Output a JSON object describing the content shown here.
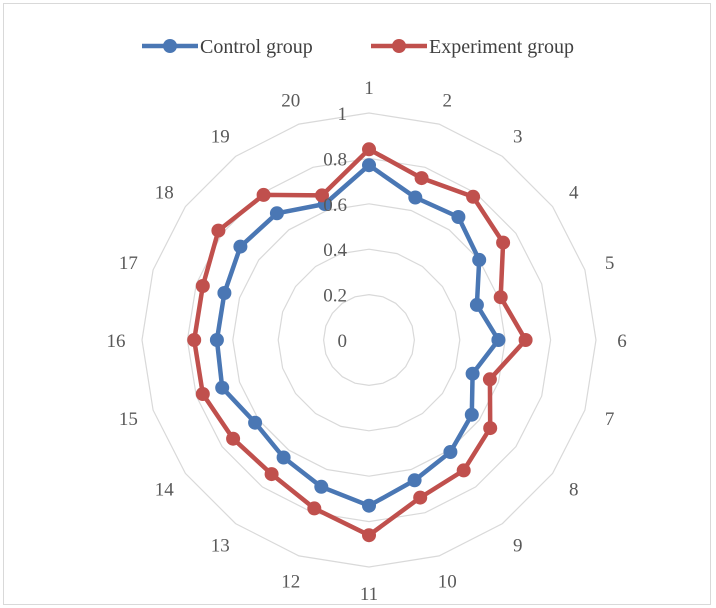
{
  "chart_data": {
    "type": "radar",
    "categories": [
      "1",
      "2",
      "3",
      "4",
      "5",
      "6",
      "7",
      "8",
      "9",
      "10",
      "11",
      "12",
      "13",
      "14",
      "15",
      "16",
      "17",
      "18",
      "19",
      "20"
    ],
    "r_ticks": [
      "0",
      "0.2",
      "0.4",
      "0.6",
      "0.8",
      "1"
    ],
    "rlim": [
      0,
      1
    ],
    "grid": true,
    "legend": "top",
    "series": [
      {
        "name": "Control group",
        "color": "#4a77b4",
        "values": [
          0.77,
          0.66,
          0.67,
          0.6,
          0.5,
          0.57,
          0.48,
          0.56,
          0.61,
          0.65,
          0.73,
          0.68,
          0.64,
          0.62,
          0.68,
          0.67,
          0.67,
          0.7,
          0.69,
          0.63
        ]
      },
      {
        "name": "Experiment group",
        "color": "#c0504d",
        "values": [
          0.84,
          0.75,
          0.78,
          0.73,
          0.61,
          0.69,
          0.56,
          0.66,
          0.71,
          0.73,
          0.86,
          0.78,
          0.73,
          0.74,
          0.77,
          0.77,
          0.77,
          0.82,
          0.79,
          0.67
        ]
      }
    ]
  }
}
